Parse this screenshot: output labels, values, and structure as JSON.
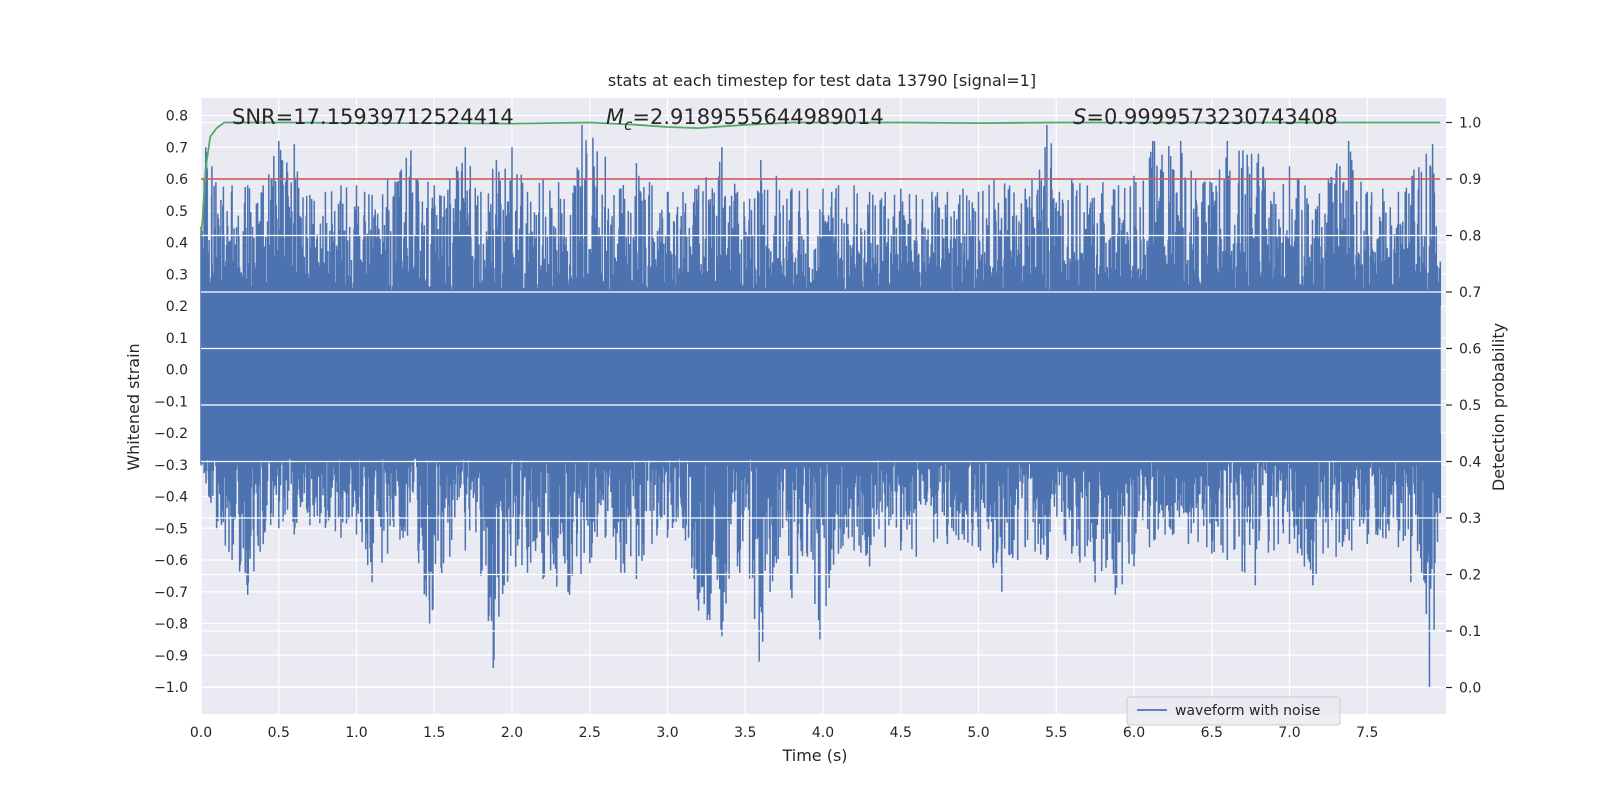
{
  "chart_data": {
    "type": "line",
    "title": "stats at each timestep for test data 13790 [signal=1]",
    "xlabel": "Time (s)",
    "ylabel_left": "Whitened strain",
    "ylabel_right": "Detection probability",
    "xlim": [
      0.0,
      8.0
    ],
    "ylim_left": [
      -1.085,
      0.855
    ],
    "ylim_right": [
      -0.047,
      1.047
    ],
    "x_ticks": [
      "0.0",
      "0.5",
      "1.0",
      "1.5",
      "2.0",
      "2.5",
      "3.0",
      "3.5",
      "4.0",
      "4.5",
      "5.0",
      "5.5",
      "6.0",
      "6.5",
      "7.0",
      "7.5"
    ],
    "x_tick_values": [
      0.0,
      0.5,
      1.0,
      1.5,
      2.0,
      2.5,
      3.0,
      3.5,
      4.0,
      4.5,
      5.0,
      5.5,
      6.0,
      6.5,
      7.0,
      7.5
    ],
    "y_left_ticks": [
      "0.8",
      "0.7",
      "0.6",
      "0.5",
      "0.4",
      "0.3",
      "0.2",
      "0.1",
      "0.0",
      "−0.1",
      "−0.2",
      "−0.3",
      "−0.4",
      "−0.5",
      "−0.6",
      "−0.7",
      "−0.8",
      "−0.9",
      "−1.0"
    ],
    "y_left_tick_values": [
      0.8,
      0.7,
      0.6,
      0.5,
      0.4,
      0.3,
      0.2,
      0.1,
      0.0,
      -0.1,
      -0.2,
      -0.3,
      -0.4,
      -0.5,
      -0.6,
      -0.7,
      -0.8,
      -0.9,
      -1.0
    ],
    "y_right_ticks": [
      "1.0",
      "0.9",
      "0.8",
      "0.7",
      "0.6",
      "0.5",
      "0.4",
      "0.3",
      "0.2",
      "0.1",
      "0.0"
    ],
    "y_right_tick_values": [
      1.0,
      0.9,
      0.8,
      0.7,
      0.6,
      0.5,
      0.4,
      0.3,
      0.2,
      0.1,
      0.0
    ],
    "threshold": 0.9,
    "annotations": {
      "snr_label": "SNR",
      "snr_value": "=17.15939712524414",
      "mc_symbol": "M",
      "mc_sub": "c",
      "mc_value": "=2.9189555644989014",
      "s_symbol": "S",
      "s_value": "=0.9999573230743408"
    },
    "legend": {
      "label": "waveform with noise",
      "location": "lower-right"
    },
    "series": [
      {
        "name": "waveform with noise",
        "axis": "left",
        "color": "#4c72b0",
        "envelope_upper": [
          [
            0.0,
            0.45
          ],
          [
            0.03,
            0.7
          ],
          [
            0.07,
            0.64
          ],
          [
            0.2,
            0.58
          ],
          [
            0.3,
            0.58
          ],
          [
            0.4,
            0.58
          ],
          [
            0.5,
            0.72
          ],
          [
            0.6,
            0.71
          ],
          [
            0.7,
            0.55
          ],
          [
            0.8,
            0.56
          ],
          [
            0.9,
            0.58
          ],
          [
            1.0,
            0.58
          ],
          [
            1.1,
            0.55
          ],
          [
            1.2,
            0.6
          ],
          [
            1.35,
            0.69
          ],
          [
            1.5,
            0.58
          ],
          [
            1.6,
            0.6
          ],
          [
            1.7,
            0.7
          ],
          [
            1.8,
            0.56
          ],
          [
            1.9,
            0.66
          ],
          [
            2.0,
            0.7
          ],
          [
            2.1,
            0.56
          ],
          [
            2.2,
            0.6
          ],
          [
            2.3,
            0.59
          ],
          [
            2.4,
            0.58
          ],
          [
            2.45,
            0.77
          ],
          [
            2.52,
            0.73
          ],
          [
            2.6,
            0.67
          ],
          [
            2.7,
            0.57
          ],
          [
            2.8,
            0.65
          ],
          [
            2.9,
            0.58
          ],
          [
            3.0,
            0.56
          ],
          [
            3.1,
            0.56
          ],
          [
            3.2,
            0.58
          ],
          [
            3.35,
            0.7
          ],
          [
            3.45,
            0.56
          ],
          [
            3.6,
            0.66
          ],
          [
            3.7,
            0.61
          ],
          [
            3.8,
            0.57
          ],
          [
            3.9,
            0.57
          ],
          [
            4.0,
            0.57
          ],
          [
            4.1,
            0.58
          ],
          [
            4.2,
            0.58
          ],
          [
            4.3,
            0.56
          ],
          [
            4.4,
            0.56
          ],
          [
            4.5,
            0.57
          ],
          [
            4.6,
            0.55
          ],
          [
            4.7,
            0.56
          ],
          [
            4.8,
            0.56
          ],
          [
            4.9,
            0.57
          ],
          [
            5.0,
            0.56
          ],
          [
            5.1,
            0.6
          ],
          [
            5.2,
            0.58
          ],
          [
            5.3,
            0.57
          ],
          [
            5.44,
            0.77
          ],
          [
            5.6,
            0.6
          ],
          [
            5.7,
            0.58
          ],
          [
            5.8,
            0.59
          ],
          [
            5.9,
            0.58
          ],
          [
            6.0,
            0.61
          ],
          [
            6.12,
            0.72
          ],
          [
            6.3,
            0.72
          ],
          [
            6.45,
            0.59
          ],
          [
            6.55,
            0.63
          ],
          [
            6.6,
            0.72
          ],
          [
            6.7,
            0.69
          ],
          [
            6.8,
            0.68
          ],
          [
            6.9,
            0.56
          ],
          [
            7.0,
            0.64
          ],
          [
            7.1,
            0.58
          ],
          [
            7.25,
            0.6
          ],
          [
            7.38,
            0.72
          ],
          [
            7.5,
            0.56
          ],
          [
            7.6,
            0.57
          ],
          [
            7.7,
            0.56
          ],
          [
            7.8,
            0.63
          ],
          [
            7.88,
            0.68
          ],
          [
            7.92,
            0.71
          ],
          [
            7.97,
            0.34
          ]
        ],
        "envelope_lower": [
          [
            0.0,
            -0.3
          ],
          [
            0.05,
            -0.4
          ],
          [
            0.1,
            -0.5
          ],
          [
            0.2,
            -0.6
          ],
          [
            0.3,
            -0.71
          ],
          [
            0.4,
            -0.55
          ],
          [
            0.5,
            -0.5
          ],
          [
            0.6,
            -0.52
          ],
          [
            0.7,
            -0.49
          ],
          [
            0.8,
            -0.5
          ],
          [
            0.9,
            -0.53
          ],
          [
            1.0,
            -0.52
          ],
          [
            1.1,
            -0.67
          ],
          [
            1.2,
            -0.58
          ],
          [
            1.3,
            -0.53
          ],
          [
            1.4,
            -0.61
          ],
          [
            1.47,
            -0.8
          ],
          [
            1.6,
            -0.59
          ],
          [
            1.7,
            -0.57
          ],
          [
            1.8,
            -0.65
          ],
          [
            1.88,
            -0.94
          ],
          [
            1.95,
            -0.68
          ],
          [
            2.1,
            -0.64
          ],
          [
            2.2,
            -0.66
          ],
          [
            2.37,
            -0.71
          ],
          [
            2.5,
            -0.61
          ],
          [
            2.6,
            -0.53
          ],
          [
            2.7,
            -0.64
          ],
          [
            2.8,
            -0.66
          ],
          [
            2.9,
            -0.55
          ],
          [
            3.0,
            -0.53
          ],
          [
            3.1,
            -0.5
          ],
          [
            3.2,
            -0.76
          ],
          [
            3.35,
            -0.84
          ],
          [
            3.45,
            -0.62
          ],
          [
            3.59,
            -0.92
          ],
          [
            3.7,
            -0.61
          ],
          [
            3.8,
            -0.72
          ],
          [
            3.9,
            -0.59
          ],
          [
            3.98,
            -0.85
          ],
          [
            4.1,
            -0.58
          ],
          [
            4.2,
            -0.57
          ],
          [
            4.3,
            -0.62
          ],
          [
            4.4,
            -0.56
          ],
          [
            4.5,
            -0.57
          ],
          [
            4.6,
            -0.59
          ],
          [
            4.8,
            -0.55
          ],
          [
            5.0,
            -0.56
          ],
          [
            5.15,
            -0.7
          ],
          [
            5.3,
            -0.56
          ],
          [
            5.44,
            -0.6
          ],
          [
            5.6,
            -0.58
          ],
          [
            5.75,
            -0.67
          ],
          [
            5.88,
            -0.71
          ],
          [
            6.0,
            -0.62
          ],
          [
            6.1,
            -0.56
          ],
          [
            6.2,
            -0.52
          ],
          [
            6.35,
            -0.55
          ],
          [
            6.5,
            -0.58
          ],
          [
            6.6,
            -0.6
          ],
          [
            6.78,
            -0.68
          ],
          [
            6.9,
            -0.57
          ],
          [
            7.0,
            -0.55
          ],
          [
            7.15,
            -0.68
          ],
          [
            7.3,
            -0.59
          ],
          [
            7.4,
            -0.57
          ],
          [
            7.5,
            -0.55
          ],
          [
            7.6,
            -0.53
          ],
          [
            7.7,
            -0.56
          ],
          [
            7.78,
            -0.67
          ],
          [
            7.85,
            -0.64
          ],
          [
            7.88,
            -0.77
          ],
          [
            7.9,
            -1.0
          ],
          [
            7.93,
            -0.82
          ],
          [
            7.97,
            -0.45
          ]
        ]
      },
      {
        "name": "detection probability",
        "axis": "right",
        "color": "#55a868",
        "x": [
          0.0,
          0.01,
          0.03,
          0.06,
          0.1,
          0.15,
          0.3,
          0.6,
          1.0,
          1.5,
          2.0,
          2.5,
          2.8,
          3.0,
          3.2,
          3.5,
          3.8,
          4.0,
          4.5,
          5.0,
          5.5,
          6.0,
          6.5,
          7.0,
          7.5,
          7.97
        ],
        "y": [
          0.8,
          0.83,
          0.92,
          0.975,
          0.99,
          1.0,
          1.0,
          1.0,
          0.999,
          0.999,
          0.998,
          1.0,
          0.996,
          0.992,
          0.99,
          0.996,
          1.0,
          1.0,
          1.0,
          0.999,
          1.0,
          1.0,
          1.0,
          1.0,
          1.0,
          1.0
        ]
      },
      {
        "name": "threshold",
        "axis": "right",
        "color": "#c44e52",
        "x": [
          0.0,
          7.97
        ],
        "y": [
          0.9,
          0.9
        ]
      }
    ]
  }
}
